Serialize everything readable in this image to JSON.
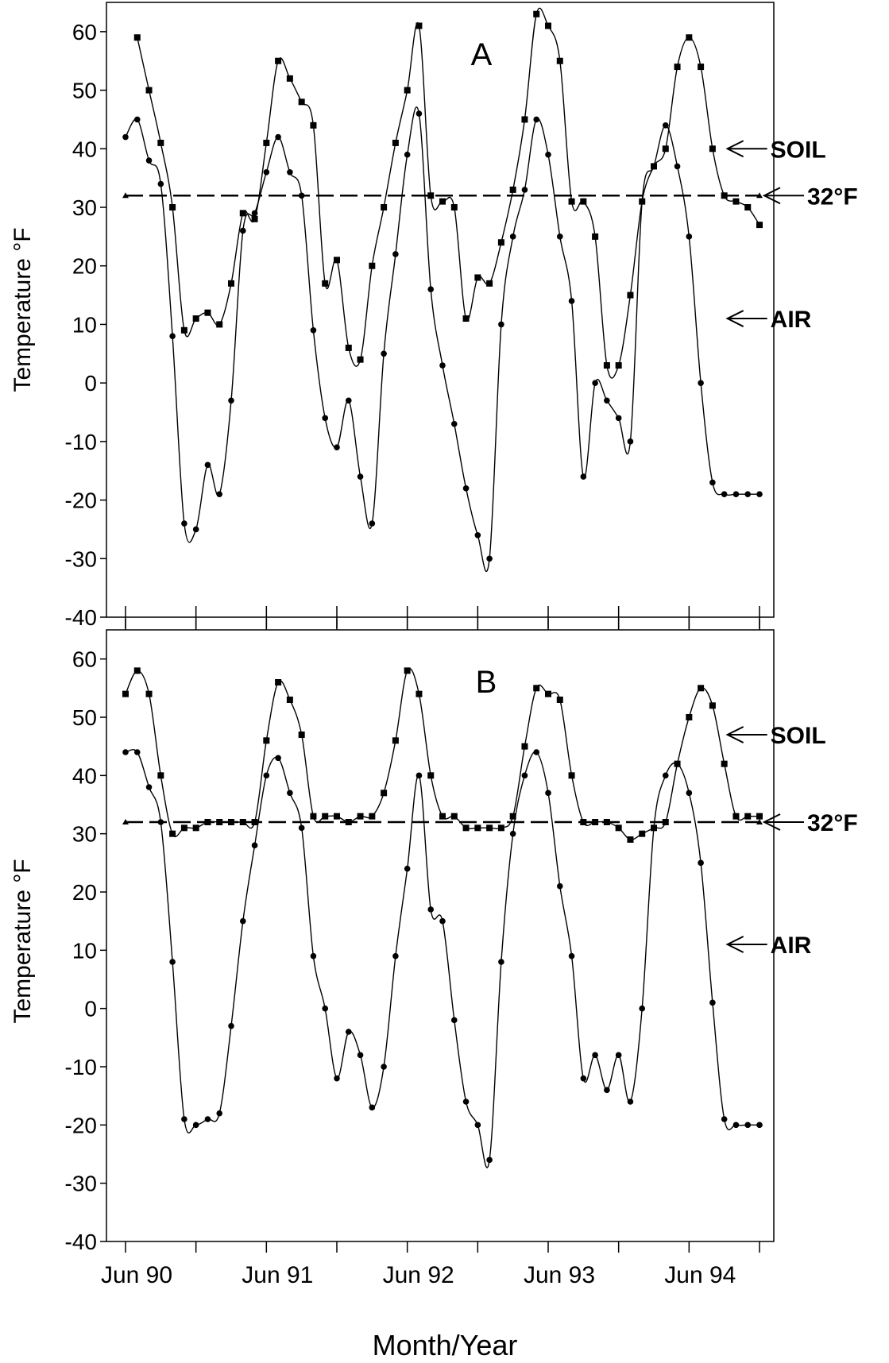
{
  "figure": {
    "xlabel": "Month/Year",
    "ylabel": "Temperature °F"
  },
  "chart_data": [
    {
      "type": "line",
      "panel_label": "A",
      "ylabel": "Temperature °F",
      "ylim": [
        -40,
        65
      ],
      "yticks": [
        -40,
        -30,
        -20,
        -10,
        0,
        10,
        20,
        30,
        40,
        50,
        60
      ],
      "x_unit": "months since Jun 90",
      "xlim": [
        0,
        54
      ],
      "grid": false,
      "annotations": [
        {
          "text": "SOIL",
          "target_series": "SOIL",
          "x": 51,
          "y": 40
        },
        {
          "text": "32°F",
          "target_series": "32°F",
          "x": 54,
          "y": 32
        },
        {
          "text": "AIR",
          "target_series": "AIR",
          "x": 51,
          "y": 11
        }
      ],
      "series": [
        {
          "name": "SOIL",
          "marker": "square",
          "x": [
            1,
            2,
            3,
            4,
            5,
            6,
            7,
            8,
            9,
            10,
            11,
            12,
            13,
            14,
            15,
            16,
            17,
            18,
            19,
            20,
            21,
            22,
            23,
            24,
            25,
            26,
            27,
            28,
            29,
            30,
            31,
            32,
            33,
            34,
            35,
            36,
            37,
            38,
            39,
            40,
            41,
            42,
            43,
            44,
            45,
            46,
            47,
            48,
            49,
            50,
            51,
            52,
            53,
            54
          ],
          "y": [
            59,
            50,
            41,
            30,
            9,
            11,
            12,
            10,
            17,
            29,
            28,
            41,
            55,
            52,
            48,
            44,
            17,
            21,
            6,
            4,
            20,
            30,
            41,
            50,
            61,
            32,
            31,
            30,
            11,
            18,
            17,
            24,
            33,
            45,
            63,
            61,
            55,
            31,
            31,
            25,
            3,
            3,
            15,
            31,
            37,
            40,
            54,
            59,
            54,
            40,
            32,
            31,
            30,
            27
          ]
        },
        {
          "name": "AIR",
          "marker": "circle",
          "x": [
            0,
            1,
            2,
            3,
            4,
            5,
            6,
            7,
            8,
            9,
            10,
            11,
            12,
            13,
            14,
            15,
            16,
            17,
            18,
            19,
            20,
            21,
            22,
            23,
            24,
            25,
            26,
            27,
            28,
            29,
            30,
            31,
            32,
            33,
            34,
            35,
            36,
            37,
            38,
            39,
            40,
            41,
            42,
            43,
            44,
            45,
            46,
            47,
            48,
            49,
            50,
            51,
            52,
            53,
            54
          ],
          "y": [
            42,
            45,
            38,
            34,
            8,
            -24,
            -25,
            -14,
            -19,
            -3,
            26,
            29,
            36,
            42,
            36,
            32,
            9,
            -6,
            -11,
            -3,
            -16,
            -24,
            5,
            22,
            39,
            46,
            16,
            3,
            -7,
            -18,
            -26,
            -30,
            10,
            25,
            33,
            45,
            39,
            25,
            14,
            -16,
            0,
            -3,
            -6,
            -10,
            31,
            37,
            44,
            37,
            25,
            0,
            -17,
            -19,
            -19,
            -19,
            -19
          ]
        },
        {
          "name": "32°F",
          "marker": "triangle",
          "style": "dashed",
          "x": [
            0,
            54
          ],
          "y": [
            32,
            32
          ]
        }
      ]
    },
    {
      "type": "line",
      "panel_label": "B",
      "ylabel": "Temperature °F",
      "ylim": [
        -40,
        65
      ],
      "yticks": [
        -40,
        -30,
        -20,
        -10,
        0,
        10,
        20,
        30,
        40,
        50,
        60
      ],
      "x_unit": "months since Jun 90",
      "xlim": [
        0,
        54
      ],
      "xticks": [
        {
          "x": 0,
          "label": "Jun 90"
        },
        {
          "x": 12,
          "label": "Jun 91"
        },
        {
          "x": 24,
          "label": "Jun 92"
        },
        {
          "x": 36,
          "label": "Jun 93"
        },
        {
          "x": 48,
          "label": "Jun 94"
        }
      ],
      "grid": false,
      "annotations": [
        {
          "text": "SOIL",
          "target_series": "SOIL",
          "x": 51,
          "y": 47
        },
        {
          "text": "32°F",
          "target_series": "32°F",
          "x": 54,
          "y": 32
        },
        {
          "text": "AIR",
          "target_series": "AIR",
          "x": 51,
          "y": 11
        }
      ],
      "series": [
        {
          "name": "SOIL",
          "marker": "square",
          "x": [
            0,
            1,
            2,
            3,
            4,
            5,
            6,
            7,
            8,
            9,
            10,
            11,
            12,
            13,
            14,
            15,
            16,
            17,
            18,
            19,
            20,
            21,
            22,
            23,
            24,
            25,
            26,
            27,
            28,
            29,
            30,
            31,
            32,
            33,
            34,
            35,
            36,
            37,
            38,
            39,
            40,
            41,
            42,
            43,
            44,
            45,
            46,
            47,
            48,
            49,
            50,
            51,
            52,
            53,
            54
          ],
          "y": [
            54,
            58,
            54,
            40,
            30,
            31,
            31,
            32,
            32,
            32,
            32,
            32,
            46,
            56,
            53,
            47,
            33,
            33,
            33,
            32,
            33,
            33,
            37,
            46,
            58,
            54,
            40,
            33,
            33,
            31,
            31,
            31,
            31,
            33,
            45,
            55,
            54,
            53,
            40,
            32,
            32,
            32,
            31,
            29,
            30,
            31,
            32,
            42,
            50,
            55,
            52,
            42,
            33,
            33,
            33
          ]
        },
        {
          "name": "AIR",
          "marker": "circle",
          "x": [
            0,
            1,
            2,
            3,
            4,
            5,
            6,
            7,
            8,
            9,
            10,
            11,
            12,
            13,
            14,
            15,
            16,
            17,
            18,
            19,
            20,
            21,
            22,
            23,
            24,
            25,
            26,
            27,
            28,
            29,
            30,
            31,
            32,
            33,
            34,
            35,
            36,
            37,
            38,
            39,
            40,
            41,
            42,
            43,
            44,
            45,
            46,
            47,
            48,
            49,
            50,
            51,
            52,
            53,
            54
          ],
          "y": [
            44,
            44,
            38,
            32,
            8,
            -19,
            -20,
            -19,
            -18,
            -3,
            15,
            28,
            40,
            43,
            37,
            31,
            9,
            0,
            -12,
            -4,
            -8,
            -17,
            -10,
            9,
            24,
            40,
            17,
            15,
            -2,
            -16,
            -20,
            -26,
            8,
            30,
            40,
            44,
            37,
            21,
            9,
            -12,
            -8,
            -14,
            -8,
            -16,
            0,
            31,
            40,
            42,
            37,
            25,
            1,
            -19,
            -20,
            -20,
            -20
          ]
        },
        {
          "name": "32°F",
          "marker": "triangle",
          "style": "dashed",
          "x": [
            0,
            54
          ],
          "y": [
            32,
            32
          ]
        }
      ]
    }
  ]
}
